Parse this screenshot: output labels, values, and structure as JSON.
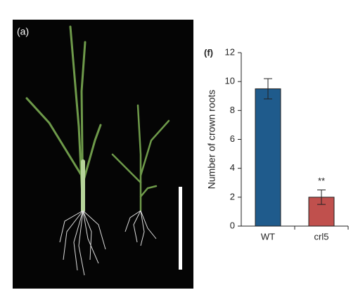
{
  "panel_a": {
    "label": "(a)"
  },
  "chart_data": {
    "type": "bar",
    "panel_label": "(f)",
    "ylabel": "Number of crown roots",
    "categories": [
      "WT",
      "crl5"
    ],
    "values": [
      9.5,
      2.0
    ],
    "errors": [
      0.7,
      0.5
    ],
    "colors": [
      "#1f5b8c",
      "#c0504d"
    ],
    "annotation": "**",
    "ylim": [
      0,
      12
    ],
    "yticks": [
      0,
      2,
      4,
      6,
      8,
      10,
      12
    ]
  }
}
